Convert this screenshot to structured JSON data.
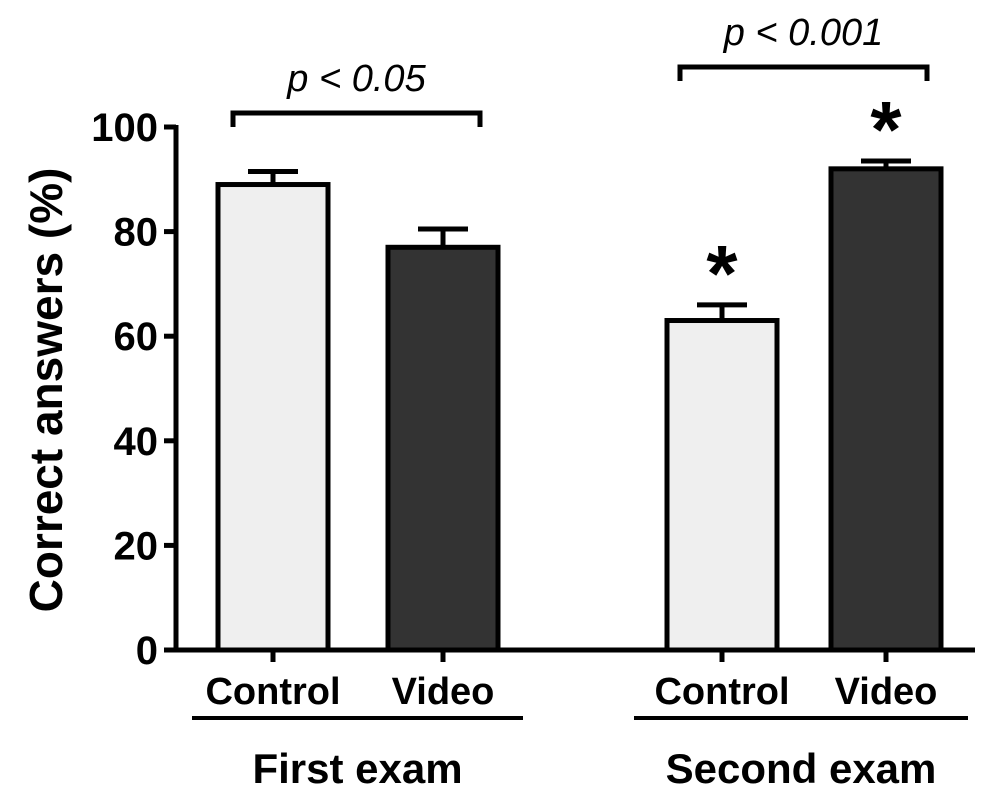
{
  "chart_data": {
    "type": "bar",
    "ylabel": "Correct answers (%)",
    "ylim": [
      0,
      100
    ],
    "yticks": [
      0,
      20,
      40,
      60,
      80,
      100
    ],
    "groups": [
      {
        "name": "First exam",
        "bars": [
          {
            "category": "Control",
            "value": 89,
            "error": 2.5,
            "fill": "#efefef",
            "mark": ""
          },
          {
            "category": "Video",
            "value": 77,
            "error": 3.5,
            "fill": "#333333",
            "mark": ""
          }
        ],
        "comparison": "p < 0.05"
      },
      {
        "name": "Second exam",
        "bars": [
          {
            "category": "Control",
            "value": 63,
            "error": 3,
            "fill": "#efefef",
            "mark": "*"
          },
          {
            "category": "Video",
            "value": 92,
            "error": 1.5,
            "fill": "#333333",
            "mark": "*"
          }
        ],
        "comparison": "p < 0.001"
      }
    ],
    "grid": false,
    "legend": "none",
    "colors": {
      "control": "#efefef",
      "video": "#333333",
      "axis": "#000000"
    }
  }
}
